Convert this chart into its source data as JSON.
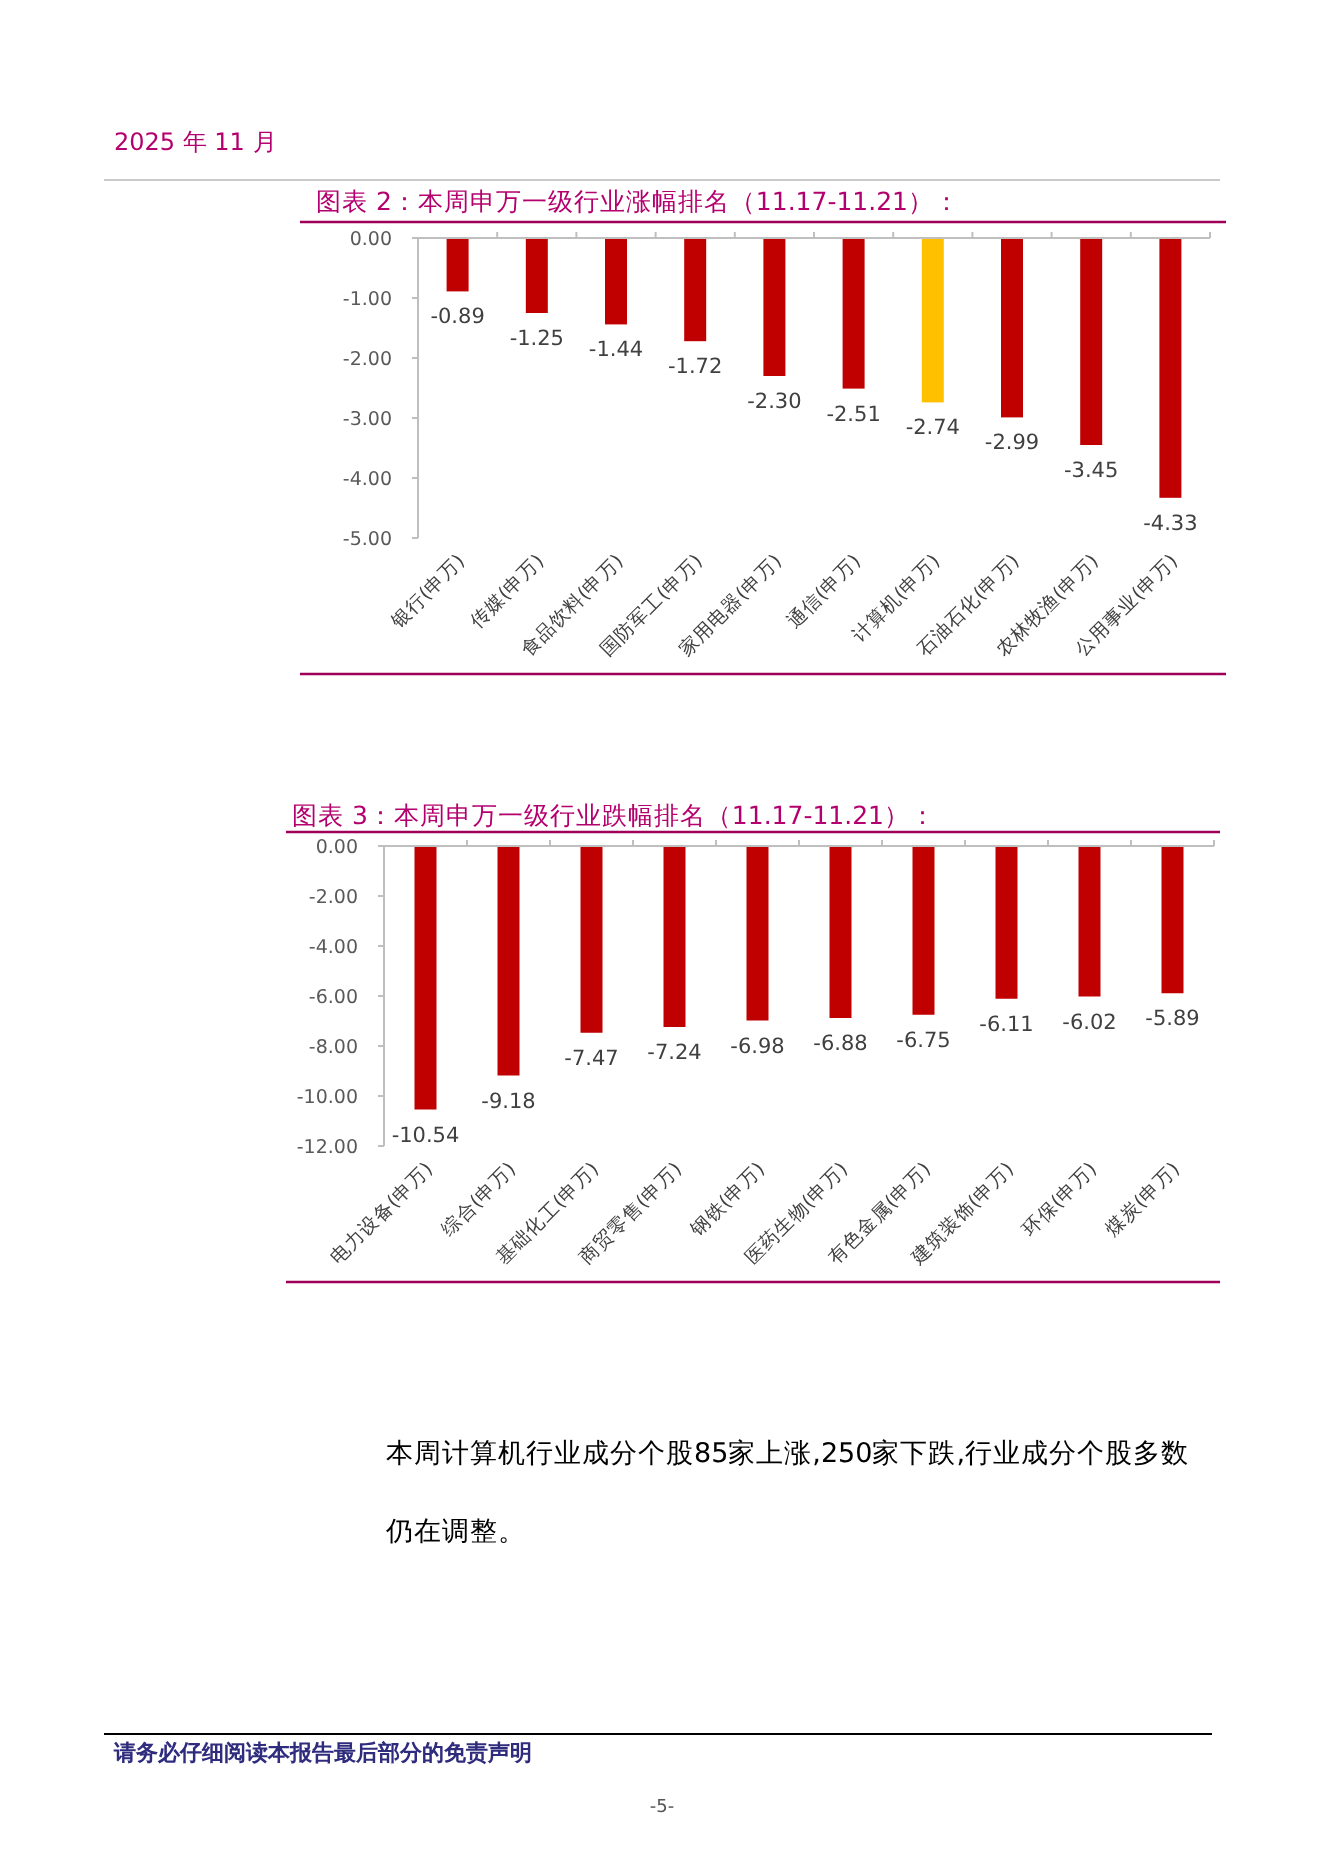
{
  "chart_data": [
    {
      "type": "other",
      "annotations": [
        "2025 年 11 月"
      ]
    },
    {
      "type": "bar",
      "title": "图表 2：本周申万一级行业涨幅排名（11.17-11.21）：",
      "categories": [
        "银行(申万)",
        "传媒(申万)",
        "食品饮料(申万)",
        "国防军工(申万)",
        "家用电器(申万)",
        "通信(申万)",
        "计算机(申万)",
        "石油石化(申万)",
        "农林牧渔(申万)",
        "公用事业(申万)"
      ],
      "values": [
        -0.89,
        -1.25,
        -1.44,
        -1.72,
        -2.3,
        -2.51,
        -2.74,
        -2.99,
        -3.45,
        -4.33
      ],
      "value_labels": [
        "-0.89",
        "-1.25",
        "-1.44",
        "-1.72",
        "-2.30",
        "-2.51",
        "-2.74",
        "-2.99",
        "-3.45",
        "-4.33"
      ],
      "colors": [
        "#c00000",
        "#c00000",
        "#c00000",
        "#c00000",
        "#c00000",
        "#c00000",
        "#ffc000",
        "#c00000",
        "#c00000",
        "#c00000"
      ],
      "ylim": [
        -5,
        0
      ],
      "yticks": [
        {
          "value": 0,
          "label": "0.00"
        },
        {
          "value": -1,
          "label": "-1.00"
        },
        {
          "value": -2,
          "label": "-2.00"
        },
        {
          "value": -3,
          "label": "-3.00"
        },
        {
          "value": -4,
          "label": "-4.00"
        },
        {
          "value": -5,
          "label": "-5.00"
        }
      ]
    },
    {
      "type": "bar",
      "title": "图表 3：本周申万一级行业跌幅排名（11.17-11.21）：",
      "categories": [
        "电力设备(申万)",
        "综合(申万)",
        "基础化工(申万)",
        "商贸零售(申万)",
        "钢铁(申万)",
        "医药生物(申万)",
        "有色金属(申万)",
        "建筑装饰(申万)",
        "环保(申万)",
        "煤炭(申万)"
      ],
      "values": [
        -10.54,
        -9.18,
        -7.47,
        -7.24,
        -6.98,
        -6.88,
        -6.75,
        -6.11,
        -6.02,
        -5.89
      ],
      "value_labels": [
        "-10.54",
        "-9.18",
        "-7.47",
        "-7.24",
        "-6.98",
        "-6.88",
        "-6.75",
        "-6.11",
        "-6.02",
        "-5.89"
      ],
      "color": "#c00000",
      "ylim": [
        -12,
        0
      ],
      "yticks": [
        {
          "value": 0,
          "label": "0.00"
        },
        {
          "value": -2,
          "label": "-2.00"
        },
        {
          "value": -4,
          "label": "-4.00"
        },
        {
          "value": -6,
          "label": "-6.00"
        },
        {
          "value": -8,
          "label": "-8.00"
        },
        {
          "value": -10,
          "label": "-10.00"
        },
        {
          "value": -12,
          "label": "-12.00"
        }
      ]
    },
    {
      "type": "other",
      "annotations": [
        "本周计算机行业成分个股85家上涨,250家下跌,行业成分个股多数仍在调整。",
        "请务必仔细阅读本报告最后部分的免责声明",
        "-5-"
      ]
    }
  ]
}
